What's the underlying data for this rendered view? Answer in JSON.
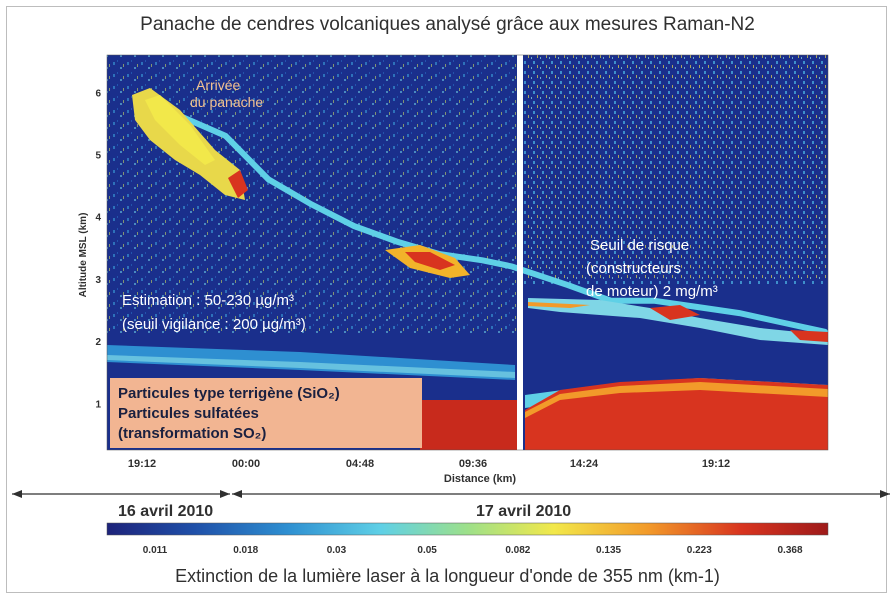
{
  "chart_data": {
    "type": "heatmap",
    "title": "Panache de cendres volcaniques analysé grâce aux mesures Raman-N2",
    "xlabel": "Distance (km)",
    "ylabel": "Altitude MSL (km)",
    "x_tick_labels": [
      "19:12",
      "00:00",
      "04:48",
      "09:36",
      "14:24",
      "19:12"
    ],
    "y_ticks": [
      1,
      2,
      3,
      4,
      5,
      6
    ],
    "ylim": [
      0.25,
      6.6
    ],
    "annotations": {
      "arrival": [
        "Arrivée",
        "du panache"
      ],
      "estimate": [
        "Estimation : 50-230 µg/m³",
        "(seuil vigilance : 200 µg/m³)"
      ],
      "threshold": [
        "Seuil de risque",
        "(constructeurs",
        "de moteur) 2 mg/m³"
      ],
      "particles": [
        "Particules type terrigène (SiO₂)",
        "Particules sulfatées",
        "(transformation SO₂)"
      ]
    },
    "dates": [
      "16 avril 2010",
      "17 avril 2010"
    ],
    "colorbar": {
      "title": "Extinction de la lumière laser à la longueur d'onde de 355 nm (km-1)",
      "tick_labels": [
        "0.011",
        "0.018",
        "0.03",
        "0.05",
        "0.082",
        "0.135",
        "0.223",
        "0.368"
      ],
      "colors": [
        "#1d237a",
        "#1f4fa8",
        "#2e8fd1",
        "#5fd0e6",
        "#9de08a",
        "#f2e84a",
        "#f29a2a",
        "#d8341f",
        "#9e1a1a"
      ]
    },
    "background_color": "#1a2f8c",
    "ash_plume": {
      "description_only": false,
      "altitude_km_path": [
        5.9,
        5.6,
        5.3,
        4.6,
        4.2,
        3.85,
        3.6,
        3.4,
        3.3,
        3.2,
        2.9,
        2.65,
        2.65,
        2.55,
        2.45,
        2.3,
        2.15
      ]
    }
  }
}
